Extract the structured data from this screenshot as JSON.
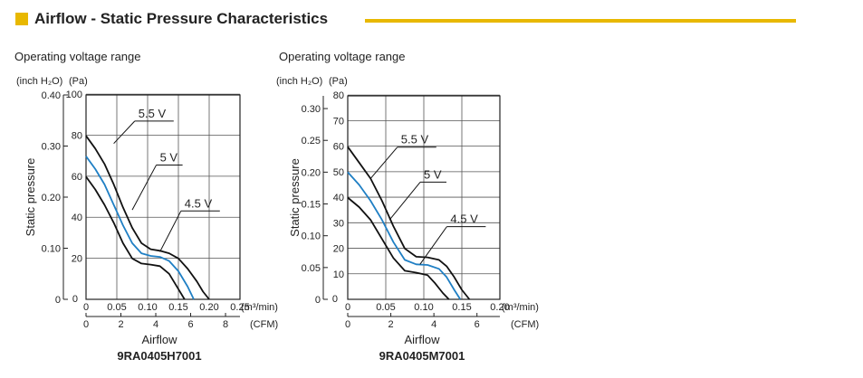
{
  "header": {
    "title": "Airflow - Static Pressure Characteristics",
    "accent_color": "#e8b800"
  },
  "chart_data": [
    {
      "type": "line",
      "subtitle": "Operating voltage range",
      "model": "9RA0405H7001",
      "xlabel": "Airflow",
      "ylabel": "Static pressure",
      "x_unit_primary": "(m³/min)",
      "x_unit_secondary": "(CFM)",
      "y_unit_primary": "(inch H₂O)",
      "y_unit_secondary": "(Pa)",
      "xlim": [
        0,
        0.25
      ],
      "ylim": [
        0,
        0.4
      ],
      "x_ticks": [
        "0",
        "0.05",
        "0.10",
        "0.15",
        "0.20",
        "0.25"
      ],
      "x2_ticks": [
        "0",
        "2",
        "4",
        "6",
        "8"
      ],
      "y_ticks": [
        "0",
        "0.10",
        "0.20",
        "0.30",
        "0.40"
      ],
      "y2_ticks": [
        "20",
        "40",
        "60",
        "80",
        "100"
      ],
      "grid": true,
      "series": [
        {
          "name": "5.5 V",
          "color": "#111111",
          "x": [
            0,
            0.015,
            0.03,
            0.045,
            0.06,
            0.075,
            0.09,
            0.105,
            0.12,
            0.135,
            0.15,
            0.165,
            0.18,
            0.19,
            0.2
          ],
          "y": [
            0.32,
            0.295,
            0.265,
            0.225,
            0.18,
            0.14,
            0.11,
            0.098,
            0.095,
            0.09,
            0.08,
            0.06,
            0.035,
            0.015,
            0.0
          ]
        },
        {
          "name": "5 V",
          "color": "#1f7fc4",
          "x": [
            0,
            0.015,
            0.03,
            0.045,
            0.06,
            0.075,
            0.09,
            0.105,
            0.12,
            0.135,
            0.15,
            0.165,
            0.175
          ],
          "y": [
            0.28,
            0.255,
            0.225,
            0.185,
            0.145,
            0.11,
            0.09,
            0.085,
            0.083,
            0.075,
            0.055,
            0.025,
            0.0
          ]
        },
        {
          "name": "4.5 V",
          "color": "#111111",
          "x": [
            0,
            0.015,
            0.03,
            0.045,
            0.06,
            0.075,
            0.09,
            0.105,
            0.12,
            0.135,
            0.15,
            0.16
          ],
          "y": [
            0.24,
            0.215,
            0.185,
            0.15,
            0.11,
            0.08,
            0.07,
            0.068,
            0.065,
            0.05,
            0.02,
            0.0
          ]
        }
      ],
      "annotations": [
        {
          "text": "5.5 V",
          "series": "5.5 V"
        },
        {
          "text": "5 V",
          "series": "5 V"
        },
        {
          "text": "4.5 V",
          "series": "4.5 V"
        }
      ]
    },
    {
      "type": "line",
      "subtitle": "Operating voltage range",
      "model": "9RA0405M7001",
      "xlabel": "Airflow",
      "ylabel": "Static pressure",
      "x_unit_primary": "(m³/min)",
      "x_unit_secondary": "(CFM)",
      "y_unit_primary": "(inch H₂O)",
      "y_unit_secondary": "(Pa)",
      "xlim": [
        0,
        0.2
      ],
      "ylim": [
        0,
        0.32
      ],
      "x_ticks": [
        "0",
        "0.05",
        "0.10",
        "0.15",
        "0.20"
      ],
      "x2_ticks": [
        "0",
        "2",
        "4",
        "6"
      ],
      "y_ticks": [
        "0",
        "0.05",
        "0.10",
        "0.15",
        "0.20",
        "0.25",
        "0.30"
      ],
      "y2_ticks": [
        "10",
        "20",
        "30",
        "40",
        "50",
        "60",
        "70",
        "80"
      ],
      "grid": true,
      "series": [
        {
          "name": "5.5 V",
          "color": "#111111",
          "x": [
            0,
            0.015,
            0.03,
            0.045,
            0.06,
            0.075,
            0.09,
            0.105,
            0.12,
            0.13,
            0.14,
            0.15,
            0.16
          ],
          "y": [
            0.24,
            0.215,
            0.19,
            0.155,
            0.115,
            0.08,
            0.067,
            0.066,
            0.062,
            0.052,
            0.035,
            0.015,
            0.0
          ]
        },
        {
          "name": "5 V",
          "color": "#1f7fc4",
          "x": [
            0,
            0.015,
            0.03,
            0.045,
            0.06,
            0.075,
            0.09,
            0.105,
            0.12,
            0.13,
            0.14,
            0.148
          ],
          "y": [
            0.2,
            0.18,
            0.155,
            0.125,
            0.09,
            0.062,
            0.055,
            0.054,
            0.048,
            0.035,
            0.015,
            0.0
          ]
        },
        {
          "name": "4.5 V",
          "color": "#111111",
          "x": [
            0,
            0.015,
            0.03,
            0.045,
            0.06,
            0.075,
            0.09,
            0.105,
            0.115,
            0.125,
            0.133
          ],
          "y": [
            0.16,
            0.145,
            0.125,
            0.095,
            0.065,
            0.045,
            0.042,
            0.038,
            0.025,
            0.01,
            0.0
          ]
        }
      ],
      "annotations": [
        {
          "text": "5.5 V",
          "series": "5.5 V"
        },
        {
          "text": "5 V",
          "series": "5 V"
        },
        {
          "text": "4.5 V",
          "series": "4.5 V"
        }
      ]
    }
  ]
}
